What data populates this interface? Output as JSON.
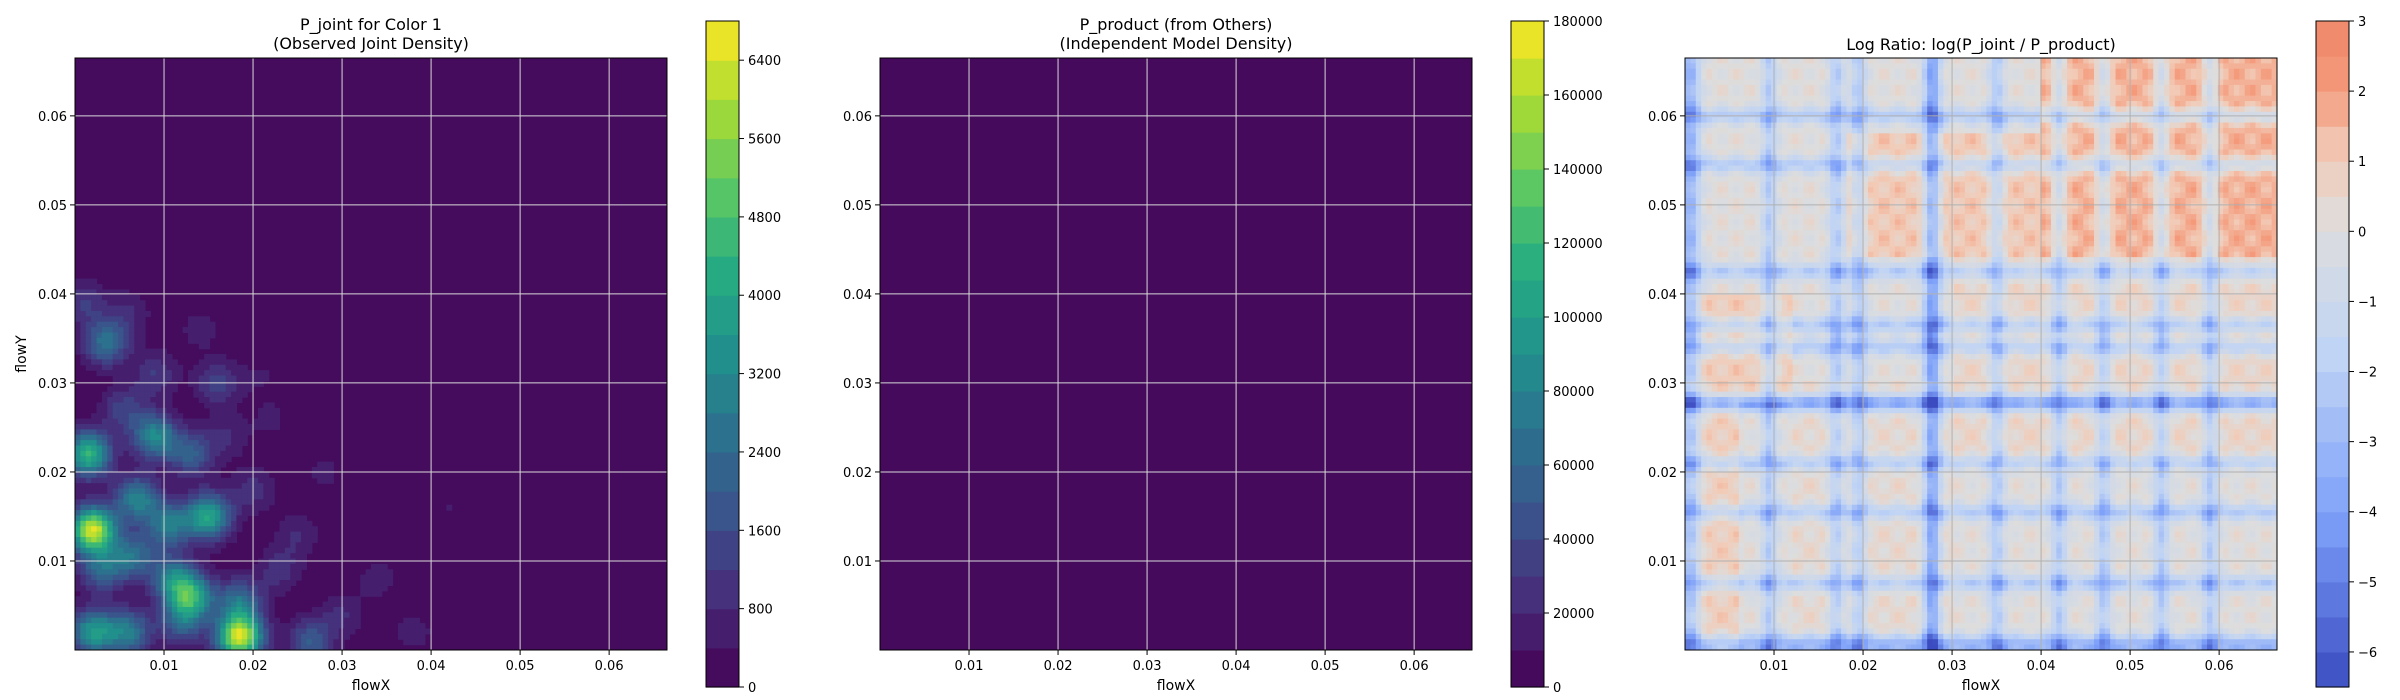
{
  "chart_data": [
    {
      "type": "heatmap",
      "title": "P_joint for Color 1\n(Observed Joint Density)",
      "xlabel": "flowX",
      "ylabel": "flowY",
      "xlim": [
        0,
        0.0665
      ],
      "ylim": [
        0,
        0.0665
      ],
      "xticks": [
        "0.01",
        "0.02",
        "0.03",
        "0.04",
        "0.05",
        "0.06"
      ],
      "yticks": [
        "0.01",
        "0.02",
        "0.03",
        "0.04",
        "0.05",
        "0.06"
      ],
      "grid": true,
      "colormap": "viridis",
      "colorbar": {
        "min": 0,
        "max": 6800,
        "ticks": [
          0,
          800,
          1600,
          2400,
          3200,
          4000,
          4800,
          5600,
          6400
        ],
        "tick_labels": [
          "0",
          "800",
          "1600",
          "2400",
          "3200",
          "4000",
          "4800",
          "5600",
          "6400"
        ],
        "levels": 17
      },
      "hotspots": [
        {
          "x": 0.002,
          "y": 0.0135,
          "value": 6400
        },
        {
          "x": 0.0185,
          "y": 0.0015,
          "value": 6400
        },
        {
          "x": 0.0015,
          "y": 0.022,
          "value": 4400
        },
        {
          "x": 0.015,
          "y": 0.015,
          "value": 4000
        },
        {
          "x": 0.013,
          "y": 0.006,
          "value": 4000
        },
        {
          "x": 0.002,
          "y": 0.002,
          "value": 3600
        },
        {
          "x": 0.009,
          "y": 0.024,
          "value": 3200
        },
        {
          "x": 0.007,
          "y": 0.017,
          "value": 3000
        },
        {
          "x": 0.0035,
          "y": 0.0345,
          "value": 2600
        },
        {
          "x": 0.0105,
          "y": 0.014,
          "value": 2800
        },
        {
          "x": 0.006,
          "y": 0.002,
          "value": 2800
        },
        {
          "x": 0.011,
          "y": 0.008,
          "value": 2600
        },
        {
          "x": 0.0185,
          "y": 0.0055,
          "value": 2400
        },
        {
          "x": 0.0065,
          "y": 0.0105,
          "value": 2400
        },
        {
          "x": 0.013,
          "y": 0.022,
          "value": 2000
        },
        {
          "x": 0.0265,
          "y": 0.001,
          "value": 2000
        },
        {
          "x": 0.003,
          "y": 0.009,
          "value": 2200
        },
        {
          "x": 0.012,
          "y": 0.003,
          "value": 2000
        },
        {
          "x": 0.016,
          "y": 0.03,
          "value": 1400
        },
        {
          "x": 0.0055,
          "y": 0.027,
          "value": 1400
        },
        {
          "x": 0.001,
          "y": 0.039,
          "value": 1200
        },
        {
          "x": 0.009,
          "y": 0.031,
          "value": 1200
        },
        {
          "x": 0.02,
          "y": 0.018,
          "value": 1000
        },
        {
          "x": 0.023,
          "y": 0.009,
          "value": 1000
        },
        {
          "x": 0.017,
          "y": 0.024,
          "value": 800
        },
        {
          "x": 0.025,
          "y": 0.013,
          "value": 800
        },
        {
          "x": 0.03,
          "y": 0.004,
          "value": 800
        },
        {
          "x": 0.034,
          "y": 0.008,
          "value": 600
        },
        {
          "x": 0.038,
          "y": 0.002,
          "value": 600
        },
        {
          "x": 0.042,
          "y": 0.016,
          "value": 400
        },
        {
          "x": 0.028,
          "y": 0.02,
          "value": 500
        },
        {
          "x": 0.022,
          "y": 0.026,
          "value": 500
        },
        {
          "x": 0.014,
          "y": 0.036,
          "value": 600
        },
        {
          "x": 0.006,
          "y": 0.038,
          "value": 800
        },
        {
          "x": 0.021,
          "y": 0.031,
          "value": 400
        },
        {
          "x": 0.022,
          "y": 0.052,
          "value": 300
        },
        {
          "x": 0.04,
          "y": 0.01,
          "value": 400
        }
      ]
    },
    {
      "type": "heatmap",
      "title": "P_product (from Others)\n(Independent Model Density)",
      "xlabel": "flowX",
      "ylabel": "",
      "xlim": [
        0,
        0.0665
      ],
      "ylim": [
        0,
        0.0665
      ],
      "xticks": [
        "0.01",
        "0.02",
        "0.03",
        "0.04",
        "0.05",
        "0.06"
      ],
      "yticks": [
        "0.01",
        "0.02",
        "0.03",
        "0.04",
        "0.05",
        "0.06"
      ],
      "grid": true,
      "colormap": "viridis",
      "colorbar": {
        "min": 0,
        "max": 180000,
        "ticks": [
          0,
          20000,
          40000,
          60000,
          80000,
          100000,
          120000,
          140000,
          160000,
          180000
        ],
        "tick_labels": [
          "0",
          "20000",
          "40000",
          "60000",
          "80000",
          "100000",
          "120000",
          "140000",
          "160000",
          "180000"
        ],
        "levels": 18
      },
      "hotspots": [
        {
          "x": 0.0005,
          "y": 0.0005,
          "value": 8000
        },
        {
          "x": 0.006,
          "y": 0.0003,
          "value": 6000
        },
        {
          "x": 0.012,
          "y": 0.0003,
          "value": 5000
        },
        {
          "x": 0.02,
          "y": 0.0003,
          "value": 5000
        },
        {
          "x": 0.026,
          "y": 0.0003,
          "value": 4000
        },
        {
          "x": 0.0004,
          "y": 0.008,
          "value": 4000
        },
        {
          "x": 0.0004,
          "y": 0.015,
          "value": 3000
        },
        {
          "x": 0.0004,
          "y": 0.028,
          "value": 3000
        }
      ]
    },
    {
      "type": "heatmap",
      "title": "Log Ratio: log(P_joint / P_product)",
      "xlabel": "flowX",
      "ylabel": "",
      "xlim": [
        0,
        0.0665
      ],
      "ylim": [
        0,
        0.0665
      ],
      "xticks": [
        "0.01",
        "0.02",
        "0.03",
        "0.04",
        "0.05",
        "0.06"
      ],
      "yticks": [
        "0.01",
        "0.02",
        "0.03",
        "0.04",
        "0.05",
        "0.06"
      ],
      "grid": true,
      "colormap": "coolwarm",
      "colorbar": {
        "min": -6.5,
        "max": 3,
        "ticks": [
          -6,
          -5,
          -4,
          -3,
          -2,
          -1,
          0,
          1,
          2,
          3
        ],
        "tick_labels": [
          "−6",
          "−5",
          "−4",
          "−3",
          "−2",
          "−1",
          "0",
          "1",
          "2",
          "3"
        ],
        "levels": 19
      },
      "blue_lines_x": [
        0.0,
        0.001,
        0.0095,
        0.017,
        0.0195,
        0.0275,
        0.028,
        0.035,
        0.042,
        0.047,
        0.0535,
        0.059
      ],
      "blue_lines_y": [
        0.0,
        0.001,
        0.0075,
        0.0155,
        0.021,
        0.0275,
        0.028,
        0.034,
        0.0365,
        0.0425,
        0.0545,
        0.06
      ],
      "warm_regions": [
        {
          "x0": 0.04,
          "x1": 0.0665,
          "y0": 0.044,
          "y1": 0.0665,
          "value": 1.6
        },
        {
          "x0": 0.018,
          "x1": 0.04,
          "y0": 0.044,
          "y1": 0.058,
          "value": 1.1
        },
        {
          "x0": 0.0,
          "x1": 0.012,
          "y0": 0.028,
          "y1": 0.04,
          "value": 1.0
        },
        {
          "x0": 0.0,
          "x1": 0.006,
          "y0": 0.0,
          "y1": 0.03,
          "value": 0.9
        },
        {
          "x0": 0.03,
          "x1": 0.0665,
          "y0": 0.02,
          "y1": 0.044,
          "value": 0.6
        },
        {
          "x0": 0.012,
          "x1": 0.03,
          "y0": 0.002,
          "y1": 0.03,
          "value": 0.4
        }
      ]
    }
  ]
}
